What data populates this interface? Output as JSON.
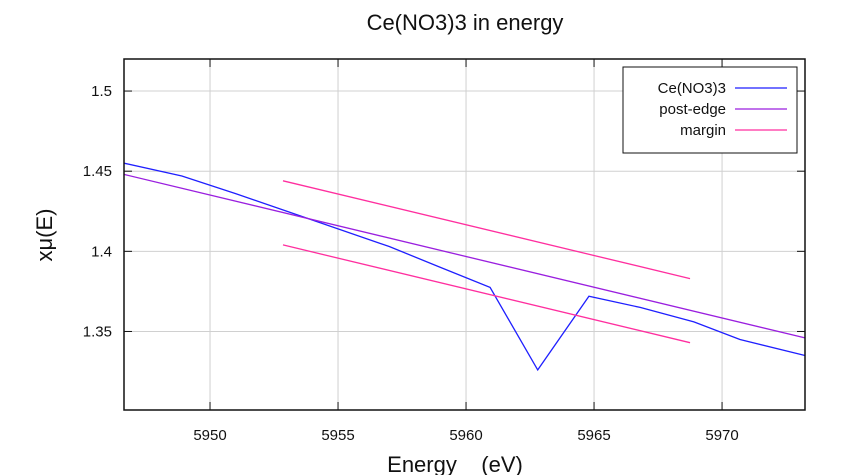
{
  "chart_data": {
    "type": "line",
    "title": "Ce(NO3)3 in energy",
    "xlabel": "Energy    (eV)",
    "ylabel": "xμ(E)",
    "xlim": [
      5946.64,
      5973.24
    ],
    "ylim": [
      1.301,
      1.52
    ],
    "xticks": [
      5950,
      5955,
      5960,
      5965,
      5970
    ],
    "yticks": [
      1.35,
      1.4,
      1.45,
      1.5
    ],
    "ytick_labels": [
      "1.35",
      "1.4",
      "1.45",
      "1.5"
    ],
    "grid": true,
    "legend_position": "top-right",
    "series": [
      {
        "name": "Ce(NO3)3",
        "color": "#1f1fff",
        "x": [
          5946.64,
          5948.9,
          5951.0,
          5953.0,
          5955.0,
          5957.0,
          5959.0,
          5960.94,
          5962.8,
          5964.8,
          5966.8,
          5968.9,
          5970.7,
          5973.24
        ],
        "y": [
          1.455,
          1.447,
          1.436,
          1.425,
          1.414,
          1.403,
          1.39,
          1.3775,
          1.326,
          1.372,
          1.365,
          1.356,
          1.345,
          1.335
        ]
      },
      {
        "name": "post-edge",
        "color": "#9a1fdf",
        "x": [
          5946.64,
          5973.24
        ],
        "y": [
          1.448,
          1.346
        ]
      },
      {
        "name": "margin",
        "color": "#ff2f9f",
        "x": [
          5952.85,
          5968.75
        ],
        "y": [
          1.444,
          1.383
        ]
      },
      {
        "name": "",
        "color": "#ff2f9f",
        "x": [
          5952.85,
          5968.75
        ],
        "y": [
          1.404,
          1.343
        ]
      }
    ]
  }
}
